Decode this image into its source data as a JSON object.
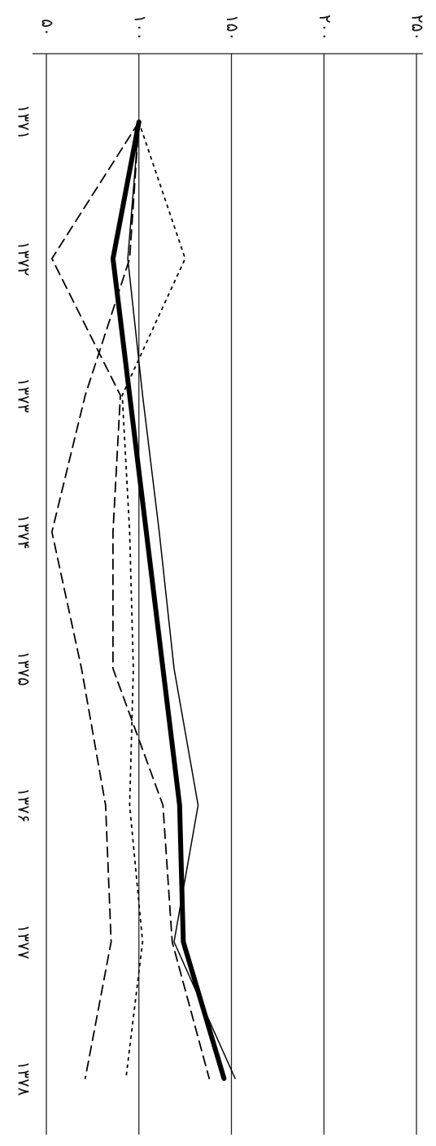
{
  "chart_data": {
    "type": "line",
    "categories": [
      "۱۳۷۱",
      "۱۳۷۲",
      "۱۳۷۳",
      "۱۳۷۴",
      "۱۳۷۵",
      "۱۳۷۶",
      "۱۳۷۷",
      "۱۳۷۸"
    ],
    "series": [
      {
        "color": "#000000",
        "style": "solid",
        "width": 6,
        "values": [
          100,
          86,
          95,
          104,
          113,
          122,
          124,
          146
        ]
      },
      {
        "color": "#000000",
        "style": "solid",
        "width": 1.5,
        "values": [
          100,
          94,
          102,
          111,
          119,
          132,
          119,
          152
        ]
      },
      {
        "color": "#000000",
        "style": "dashed",
        "width": 1.8,
        "values": [
          100,
          53,
          90,
          86,
          86,
          113,
          118,
          138
        ]
      },
      {
        "color": "#000000",
        "style": "dashed",
        "width": 1.8,
        "values": [
          100,
          95,
          71,
          53,
          69,
          82,
          85,
          71
        ]
      },
      {
        "color": "#000000",
        "style": "dotted",
        "width": 1.8,
        "values": [
          100,
          125,
          91,
          95,
          97,
          95,
          102,
          93
        ]
      }
    ],
    "ylim": [
      50,
      250
    ],
    "yticks": [
      {
        "value": 50,
        "label": "۵۰"
      },
      {
        "value": 100,
        "label": "۱۰۰"
      },
      {
        "value": 150,
        "label": "۱۵۰"
      },
      {
        "value": 200,
        "label": "۲۰۰"
      },
      {
        "value": 250,
        "label": "۲۵۰"
      }
    ],
    "grid": true
  }
}
